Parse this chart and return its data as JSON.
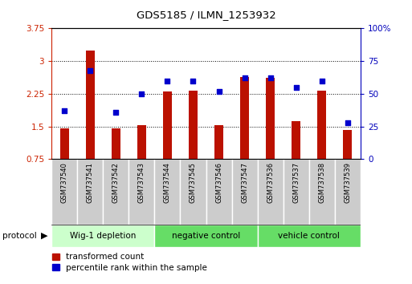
{
  "title": "GDS5185 / ILMN_1253932",
  "samples": [
    "GSM737540",
    "GSM737541",
    "GSM737542",
    "GSM737543",
    "GSM737544",
    "GSM737545",
    "GSM737546",
    "GSM737547",
    "GSM737536",
    "GSM737537",
    "GSM737538",
    "GSM737539"
  ],
  "red_values": [
    1.45,
    3.25,
    1.45,
    1.52,
    2.3,
    2.32,
    1.53,
    2.63,
    2.62,
    1.62,
    2.32,
    1.42
  ],
  "blue_values": [
    37,
    68,
    36,
    50,
    60,
    60,
    52,
    62,
    62,
    55,
    60,
    28
  ],
  "ylim_left": [
    0.75,
    3.75
  ],
  "ylim_right": [
    0,
    100
  ],
  "yticks_left": [
    0.75,
    1.5,
    2.25,
    3.0,
    3.75
  ],
  "yticks_right": [
    0,
    25,
    50,
    75,
    100
  ],
  "ytick_labels_left": [
    "0.75",
    "1.5",
    "2.25",
    "3",
    "3.75"
  ],
  "ytick_labels_right": [
    "0",
    "25",
    "50",
    "75",
    "100%"
  ],
  "groups": [
    {
      "label": "Wig-1 depletion",
      "start": 0,
      "end": 4
    },
    {
      "label": "negative control",
      "start": 4,
      "end": 8
    },
    {
      "label": "vehicle control",
      "start": 8,
      "end": 12
    }
  ],
  "group_colors": [
    "#ccffcc",
    "#66dd66",
    "#66dd66"
  ],
  "bar_color": "#bb1100",
  "dot_color": "#0000cc",
  "bar_width": 0.35,
  "xlabel_color_left": "#cc2200",
  "xlabel_color_right": "#0000bb",
  "legend_red_label": "transformed count",
  "legend_blue_label": "percentile rank within the sample",
  "protocol_label": "protocol",
  "cell_color": "#cccccc",
  "cell_edge_color": "#ffffff",
  "chart_bg": "#ffffff"
}
